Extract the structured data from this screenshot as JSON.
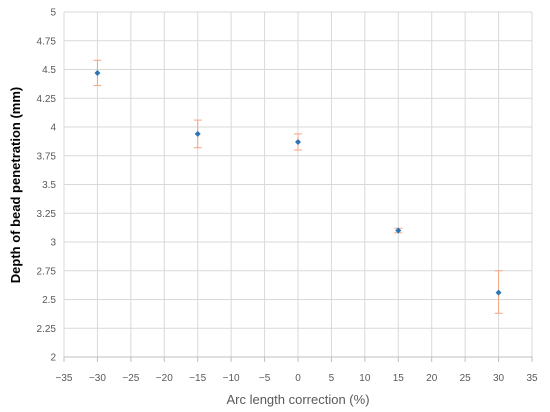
{
  "chart_data": {
    "type": "scatter",
    "title": "",
    "xlabel": "Arc length correction (%)",
    "ylabel": "Depth of bead penetration (mm)",
    "xlim": [
      -35,
      35
    ],
    "ylim": [
      2,
      5
    ],
    "xticks": [
      -35,
      -30,
      -25,
      -20,
      -15,
      -10,
      -5,
      0,
      5,
      10,
      15,
      20,
      25,
      30,
      35
    ],
    "xtick_labels": [
      "−35",
      "−30",
      "−25",
      "−20",
      "−15",
      "−10",
      "−5",
      "0",
      "5",
      "10",
      "15",
      "20",
      "25",
      "30",
      "35"
    ],
    "yticks": [
      2,
      2.25,
      2.5,
      2.75,
      3,
      3.25,
      3.5,
      3.75,
      4,
      4.25,
      4.5,
      4.75,
      5
    ],
    "ytick_labels": [
      "2",
      "2.25",
      "2.5",
      "2.75",
      "3",
      "3.25",
      "3.5",
      "3.75",
      "4",
      "4.25",
      "4.5",
      "4.75",
      "5"
    ],
    "grid": true,
    "series": [
      {
        "x": [
          -30,
          -15,
          0,
          15,
          30
        ],
        "y": [
          4.47,
          3.94,
          3.87,
          3.1,
          2.56
        ],
        "error_low": [
          4.36,
          3.82,
          3.8,
          3.08,
          2.38
        ],
        "error_high": [
          4.58,
          4.06,
          3.94,
          3.12,
          2.75
        ],
        "marker_color": "#2e75b6",
        "error_color": "#f4a582"
      }
    ],
    "colors": {
      "grid": "#d9d9d9",
      "axis": "#bfbfbf",
      "text": "#595959"
    }
  }
}
